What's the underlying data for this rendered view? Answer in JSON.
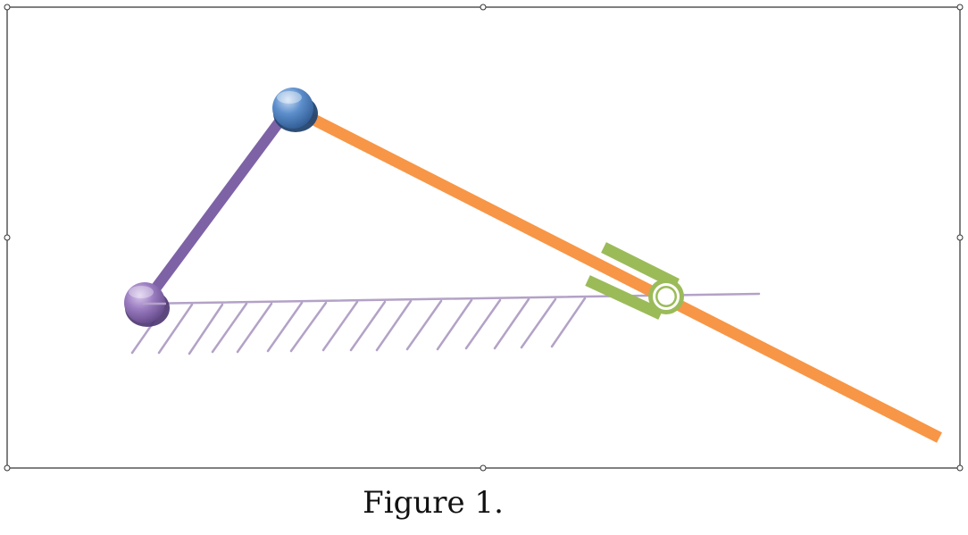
{
  "caption": "Figure 1.",
  "colors": {
    "crank": "#7e62a6",
    "connecting_rod": "#f79646",
    "slider_guide": "#9bbb59",
    "ground_hatch": "#b3a2c7",
    "pivot_ground": "#8064a2",
    "pivot_joint": "#4f81bd",
    "frame": "#000000"
  },
  "icons": {
    "ground_pivot": "purple-sphere-pivot",
    "crank_joint": "blue-sphere-joint",
    "slider": "green-fork-slider"
  }
}
